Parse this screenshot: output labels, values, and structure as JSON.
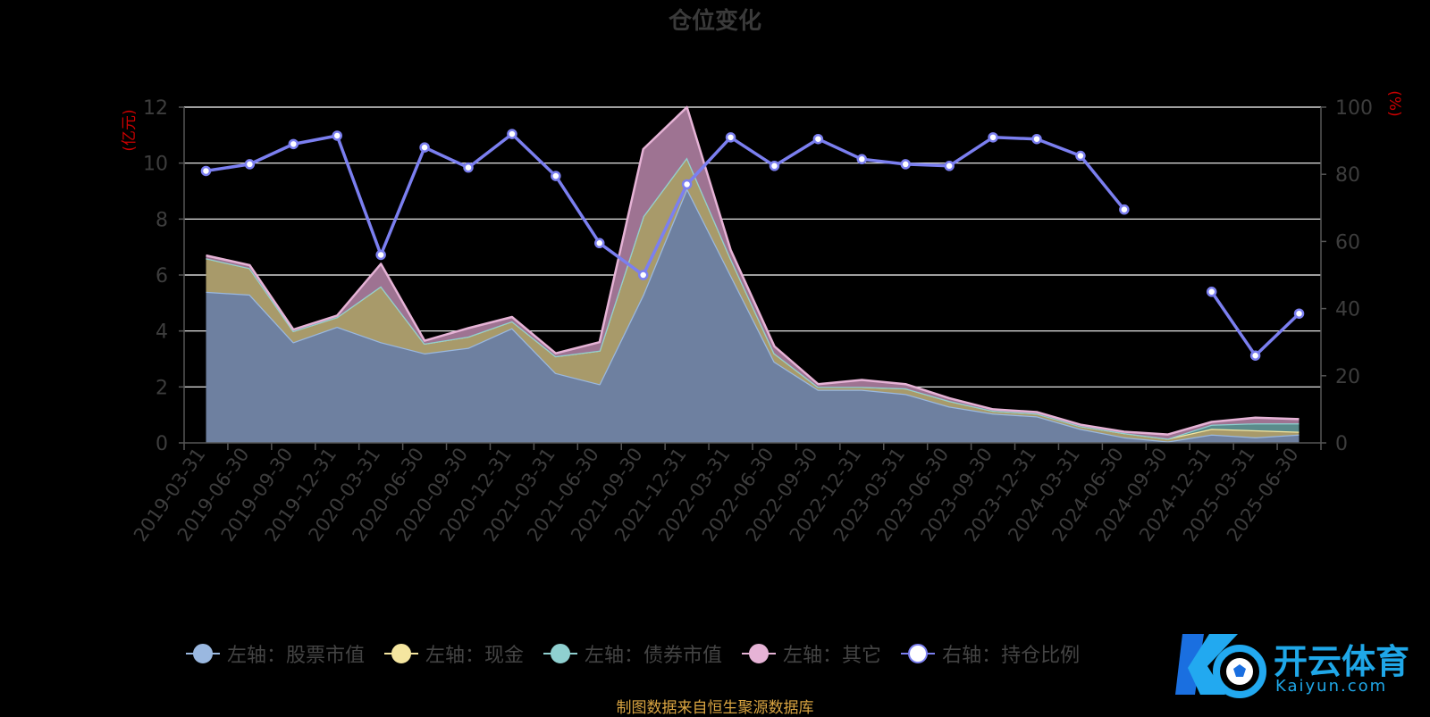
{
  "chart_data": {
    "type": "area",
    "title": "仓位变化",
    "y_left_label": "(亿元)",
    "y_right_label": "(%)",
    "y_left_range": [
      0,
      12
    ],
    "y_left_ticks": [
      "0",
      "2",
      "4",
      "6",
      "8",
      "10",
      "12"
    ],
    "y_right_range": [
      0,
      100
    ],
    "y_right_ticks": [
      "0",
      "20",
      "40",
      "60",
      "80",
      "100"
    ],
    "grid": true,
    "legend_position": "bottom",
    "categories": [
      "2019-03-31",
      "2019-06-30",
      "2019-09-30",
      "2019-12-31",
      "2020-03-31",
      "2020-06-30",
      "2020-09-30",
      "2020-12-31",
      "2021-03-31",
      "2021-06-30",
      "2021-09-30",
      "2021-12-31",
      "2022-03-31",
      "2022-06-30",
      "2022-09-30",
      "2022-12-31",
      "2023-03-31",
      "2023-06-30",
      "2023-09-30",
      "2023-12-31",
      "2024-03-31",
      "2024-06-30",
      "2024-09-30",
      "2024-12-31",
      "2025-03-31",
      "2025-06-30"
    ],
    "stacked_series": [
      {
        "name": "左轴：股票市值",
        "axis": "left",
        "color": "#9ab8e0",
        "fill": "#6e80a0",
        "values": [
          5.4,
          5.3,
          3.6,
          4.15,
          3.6,
          3.2,
          3.4,
          4.1,
          2.5,
          2.1,
          5.3,
          9.1,
          6.0,
          2.9,
          1.9,
          1.9,
          1.75,
          1.3,
          1.05,
          0.95,
          0.5,
          0.2,
          0.05,
          0.3,
          0.2,
          0.3
        ]
      },
      {
        "name": "左轴：现金",
        "axis": "left",
        "color": "#f5e6a0",
        "fill": "#a89a6a",
        "values": [
          1.2,
          0.95,
          0.4,
          0.35,
          2.0,
          0.35,
          0.4,
          0.25,
          0.6,
          1.2,
          2.8,
          1.1,
          0.6,
          0.3,
          0.1,
          0.1,
          0.2,
          0.2,
          0.1,
          0.1,
          0.1,
          0.15,
          0.1,
          0.2,
          0.25,
          0.1
        ]
      },
      {
        "name": "左轴：债券市值",
        "axis": "left",
        "color": "#8fd0d0",
        "fill": "#5a8c8c",
        "values": [
          0,
          0,
          0,
          0,
          0,
          0,
          0,
          0,
          0,
          0,
          0,
          0,
          0,
          0,
          0,
          0,
          0,
          0,
          0,
          0,
          0,
          0,
          0,
          0.15,
          0.25,
          0.3
        ]
      },
      {
        "name": "左轴：其它",
        "axis": "left",
        "color": "#e6b3d6",
        "fill": "#9e7392",
        "values": [
          0.1,
          0.1,
          0.05,
          0.05,
          0.8,
          0.1,
          0.3,
          0.15,
          0.1,
          0.3,
          2.4,
          1.8,
          0.3,
          0.25,
          0.1,
          0.25,
          0.15,
          0.1,
          0.05,
          0.05,
          0.05,
          0.05,
          0.15,
          0.1,
          0.2,
          0.15
        ]
      }
    ],
    "line_series": {
      "name": "右轴：持仓比例",
      "axis": "right",
      "color": "#7b7ff0",
      "values": [
        81,
        83,
        89,
        91.5,
        56,
        88,
        82,
        92,
        79.5,
        59.5,
        50,
        77,
        91,
        82.5,
        90.5,
        84.5,
        83,
        82.5,
        91,
        90.5,
        85.5,
        69.5,
        null,
        45,
        26,
        38.5
      ]
    }
  },
  "footer": "制图数据来自恒生聚源数据库",
  "watermark": {
    "text": "开云体育",
    "subtext": "Kaiyun.com"
  },
  "colors": {
    "axis_text": "#3d3d3d",
    "axis_title": "#cc0000",
    "grid": "#ffffff",
    "footer": "#d9a441"
  }
}
